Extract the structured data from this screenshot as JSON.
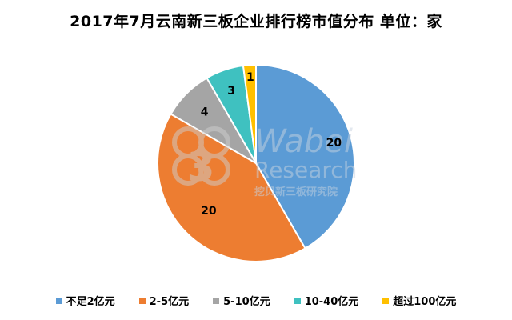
{
  "chart_data": {
    "type": "pie",
    "title": "2017年7月云南新三板企业排行榜市值分布 单位：家",
    "categories": [
      "不足2亿元",
      "2-5亿元",
      "5-10亿元",
      "10-40亿元",
      "超过100亿元"
    ],
    "values": [
      20,
      20,
      4,
      3,
      1
    ],
    "colors": [
      "#5B9BD5",
      "#ED7D31",
      "#A5A5A5",
      "#3FC1C0",
      "#FFC000"
    ],
    "legend_position": "bottom"
  },
  "watermark": {
    "word1": "Wabei",
    "word2": "Research",
    "caption": "挖贝新三板研究院",
    "logo_digit": "3"
  }
}
